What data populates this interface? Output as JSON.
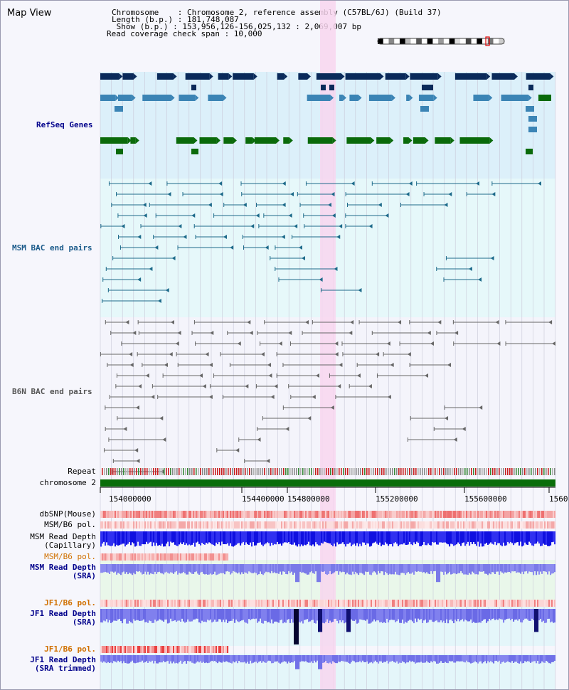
{
  "page": {
    "title": "Map View",
    "header": {
      "chromosome_line": "Chromosome    : Chromosome 2, reference assembly (C57BL/6J) (Build 37)",
      "length_line": "Length (b.p.) : 181,748,087",
      "show_line": " Show (b.p.) : 153,956,126-156,025,132 : 2,069,007 bp",
      "coverage_line": "Read coverage check span : 10,000"
    }
  },
  "colors": {
    "refseq_bg": "#dcf0fa",
    "bac_bg": "#e6f8fa",
    "highlight": "#f8d6ef",
    "gene_dark": "#0a2a5a",
    "gene_mid": "#3b84b5",
    "gene_green": "#0a6a0a",
    "msm_pair": "#1d6a8a",
    "b6n_pair": "#666666",
    "chrom_bar": "#0a6e0a",
    "label_blue": "#00008b",
    "label_orange": "#d07000"
  },
  "tracks": {
    "refseq": "RefSeq Genes",
    "msm_bac": "MSM BAC end pairs",
    "b6n_bac": "B6N BAC end pairs",
    "repeat": "Repeat",
    "chromosome": "chromosome 2"
  },
  "axis": {
    "ticks": [
      "154000000",
      "154400000",
      "154800000",
      "155200000",
      "155600000",
      "1560"
    ]
  },
  "lower_tracks": [
    {
      "key": "dbsnp",
      "line1": "dbSNP(Mouse)",
      "line2": ""
    },
    {
      "key": "msm_b6_pol_a",
      "line1": "MSM/B6 pol.",
      "line2": ""
    },
    {
      "key": "msm_depth_cap",
      "line1": "MSM Read Depth",
      "line2": "(Capillary)"
    },
    {
      "key": "msm_b6_pol_b",
      "line1": "MSM/B6 pol.",
      "line2": ""
    },
    {
      "key": "msm_depth_sra",
      "line1": "MSM Read Depth",
      "line2": "(SRA)"
    },
    {
      "key": "jf1_b6_pol_a",
      "line1": "JF1/B6 pol.",
      "line2": ""
    },
    {
      "key": "jf1_depth_sra",
      "line1": "JF1 Read Depth",
      "line2": "(SRA)"
    },
    {
      "key": "jf1_b6_pol_b",
      "line1": "JF1/B6 pol.",
      "line2": ""
    },
    {
      "key": "jf1_depth_trim",
      "line1": "JF1 Read Depth",
      "line2": "(SRA trimmed)"
    }
  ]
}
